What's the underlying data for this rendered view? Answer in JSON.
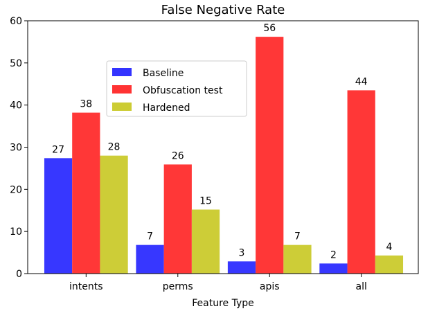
{
  "chart_data": {
    "type": "bar",
    "title": "False Negative Rate",
    "xlabel": "Feature Type",
    "ylabel": "",
    "categories": [
      "intents",
      "perms",
      "apis",
      "all"
    ],
    "series": [
      {
        "name": "Baseline",
        "values": [
          27.4,
          6.8,
          2.9,
          2.4
        ],
        "labels": [
          "27",
          "7",
          "3",
          "2"
        ],
        "color": "#3333ff"
      },
      {
        "name": "Obfuscation test",
        "values": [
          38.2,
          25.9,
          56.2,
          43.5
        ],
        "labels": [
          "38",
          "26",
          "56",
          "44"
        ],
        "color": "#ff3333"
      },
      {
        "name": "Hardened",
        "values": [
          28.0,
          15.2,
          6.8,
          4.3
        ],
        "labels": [
          "28",
          "15",
          "7",
          "4"
        ],
        "color": "#cccc33"
      }
    ],
    "ylim": [
      0,
      60
    ],
    "yticks": [
      0,
      10,
      20,
      30,
      40,
      50,
      60
    ],
    "grid": false,
    "legend_position": "upper-left"
  }
}
